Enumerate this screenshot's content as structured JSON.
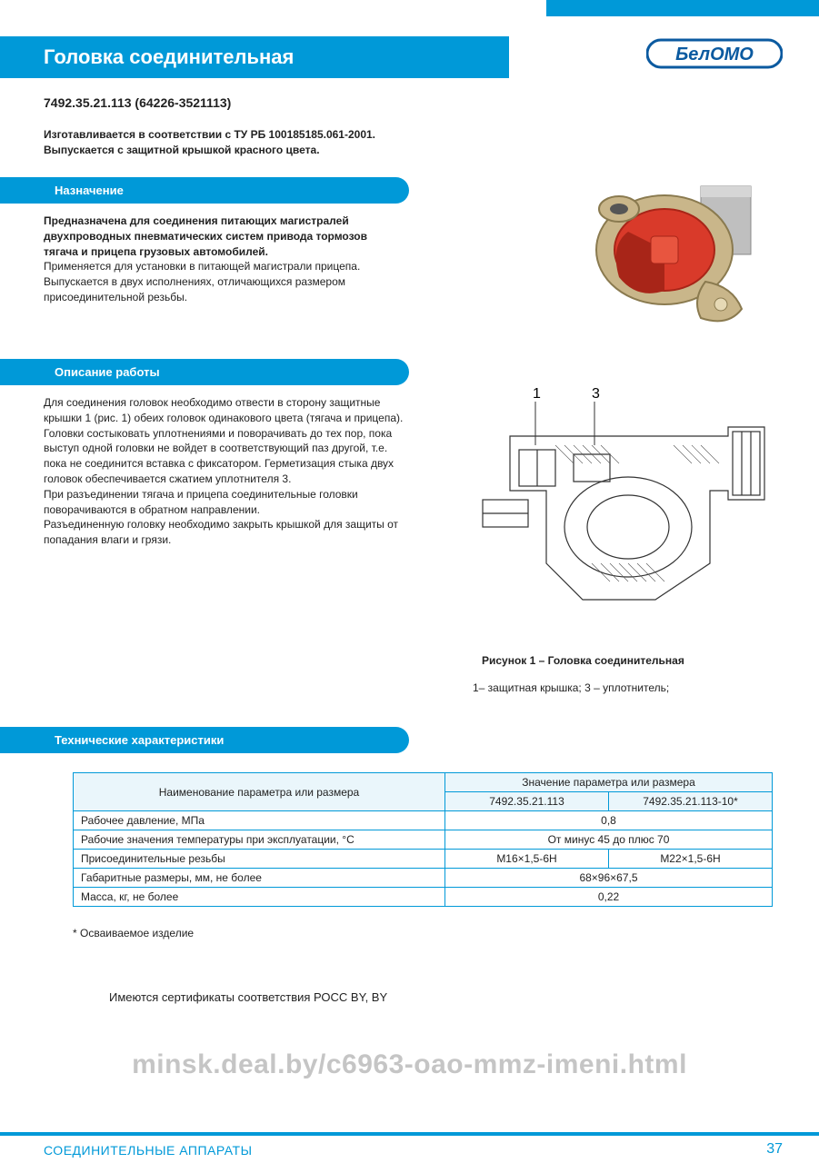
{
  "colors": {
    "brand_blue": "#0099d8",
    "text": "#222222",
    "table_border": "#0099d8",
    "table_header_bg": "#eaf6fb",
    "watermark": "rgba(140,140,140,0.5)"
  },
  "logo": {
    "text": "БелОМО",
    "stroke": "#0b5aa0",
    "fill": "#ffffff"
  },
  "header": {
    "title": "Головка соединительная"
  },
  "part_number": "7492.35.21.113 (64226-3521113)",
  "manufacturing_note_line1": "Изготавливается в соответствии с ТУ РБ 100185185.061-2001.",
  "manufacturing_note_line2": "Выпускается с защитной крышкой красного цвета.",
  "sections": {
    "purpose": "Назначение",
    "description": "Описание работы",
    "tech": "Технические характеристики"
  },
  "purpose_bold": "Предназначена для соединения питающих магистралей двухпроводных пневматических систем привода тормозов тягача и прицепа грузовых автомобилей.",
  "purpose_rest": "Применяется для установки в питающей магистрали прицепа. Выпускается в двух исполнениях, отличающихся размером присоединительной резьбы.",
  "description_text": "Для соединения головок необходимо отвести в сторону защитные крышки 1 (рис. 1) обеих головок одинакового цвета (тягача и прицепа). Головки состыковать уплотнениями и поворачивать до тех пор, пока выступ одной головки не войдет в соответствующий паз другой, т.е. пока не соединится вставка с фиксатором. Герметизация стыка двух головок обеспечивается сжатием уплотнителя 3.\nПри разъединении тягача и прицепа соединительные головки поворачиваются в обратном направлении.\nРазъединенную головку необходимо закрыть крышкой для защиты от попадания влаги и грязи.",
  "figure": {
    "caption": "Рисунок 1 –  Головка соединительная",
    "legend": "1– защитная крышка;  3 – уплотнитель;",
    "callout_1": "1",
    "callout_3": "3"
  },
  "spec_table": {
    "header_param": "Наименование параметра или размера",
    "header_value": "Значение параметра или размера",
    "model_a": "7492.35.21.113",
    "model_b": "7492.35.21.113-10*",
    "rows": [
      {
        "name": "Рабочее давление, МПа",
        "span": true,
        "value": "0,8"
      },
      {
        "name": "Рабочие значения температуры при эксплуатации, °С",
        "span": true,
        "value": "От минус 45 до плюс 70"
      },
      {
        "name": "Присоединительные резьбы",
        "span": false,
        "value_a": "М16×1,5-6Н",
        "value_b": "М22×1,5-6Н"
      },
      {
        "name": "Габаритные размеры, мм, не более",
        "span": true,
        "value": "68×96×67,5"
      },
      {
        "name": "Масса, кг, не более",
        "span": true,
        "value": "0,22"
      }
    ]
  },
  "footnote": "* Осваиваемое изделие",
  "cert_note": "Имеются сертификаты соответствия РОСС BY, BY",
  "watermark": "minsk.deal.by/c6963-oao-mmz-imeni.html",
  "footer": {
    "category": "СОЕДИНИТЕЛЬНЫЕ АППАРАТЫ",
    "page": "37"
  },
  "product_photo": {
    "body_metal": "#c9b68a",
    "body_metal_dark": "#a8956a",
    "cover_red": "#d93a2a",
    "cover_red_dark": "#a82518",
    "back_plate": "#bfbfbf"
  },
  "diagram_style": {
    "stroke": "#333333",
    "hatch": "#555555",
    "stroke_width": 1.2
  }
}
